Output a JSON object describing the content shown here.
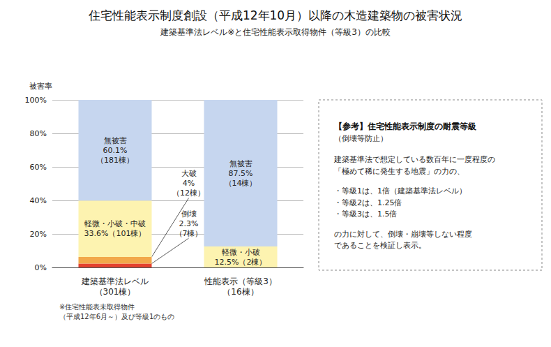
{
  "chart_data": {
    "type": "bar",
    "title": "住宅性能表示制度創設（平成12年10月）以降の木造建築物の被害状況",
    "subtitle": "建築基準法レベル※と住宅性能表示取得物件（等級3）の比較",
    "ylabel": "被害率",
    "categories": [
      "建築基準法レベル\n（301棟）",
      "性能表示（等級3）\n（16棟）"
    ],
    "stacked": true,
    "data_labels": true,
    "grid": true,
    "ylim": [
      0,
      100
    ],
    "yticks": [
      {
        "value": 0,
        "label": "0%"
      },
      {
        "value": 20,
        "label": "20%"
      },
      {
        "value": 40,
        "label": "40%"
      },
      {
        "value": 60,
        "label": "60%"
      },
      {
        "value": 80,
        "label": "80%"
      },
      {
        "value": 100,
        "label": "100%"
      }
    ],
    "series": [
      {
        "name": "倒壊",
        "color": "#e4412f",
        "values": [
          2.3,
          0
        ],
        "value_labels": [
          "倒壊\n2.3%\n（7棟）",
          null
        ]
      },
      {
        "name": "大破",
        "color": "#f2a84a",
        "values": [
          4,
          0
        ],
        "value_labels": [
          "大破\n4%\n（12棟）",
          null
        ]
      },
      {
        "name": "軽微・小破・中破",
        "color": "#fdf3b0",
        "values": [
          33.6,
          12.5
        ],
        "value_labels": [
          "軽微・小破・中破\n33.6%（101棟）",
          "軽微・小破\n12.5%（2棟）"
        ]
      },
      {
        "name": "無被害",
        "color": "#c6d6ef",
        "values": [
          60.1,
          87.5
        ],
        "value_labels": [
          "無被害\n60.1%\n（181棟）",
          "無被害\n87.5%\n（14棟）"
        ]
      }
    ],
    "annotations": {
      "footnote": "※住宅性能表未取得物件\n（平成12年6月～）及び等級1のもの",
      "reference": {
        "title": "【参考】住宅性能表示制度の耐震等級",
        "subtitle": "（倒壊等防止）",
        "paragraphs": [
          [
            "建築基準法で想定している数百年に一度程度の",
            "「極めて稀に発生する地震」の力の、"
          ],
          [
            "・等級1は、1倍（建築基準法レベル）",
            "・等級2は、1.25倍",
            "・等級3は、1.5倍"
          ],
          [
            "の力に対して、倒壊・崩壊等しない程度",
            "であることを検証し表示。"
          ]
        ]
      }
    }
  }
}
